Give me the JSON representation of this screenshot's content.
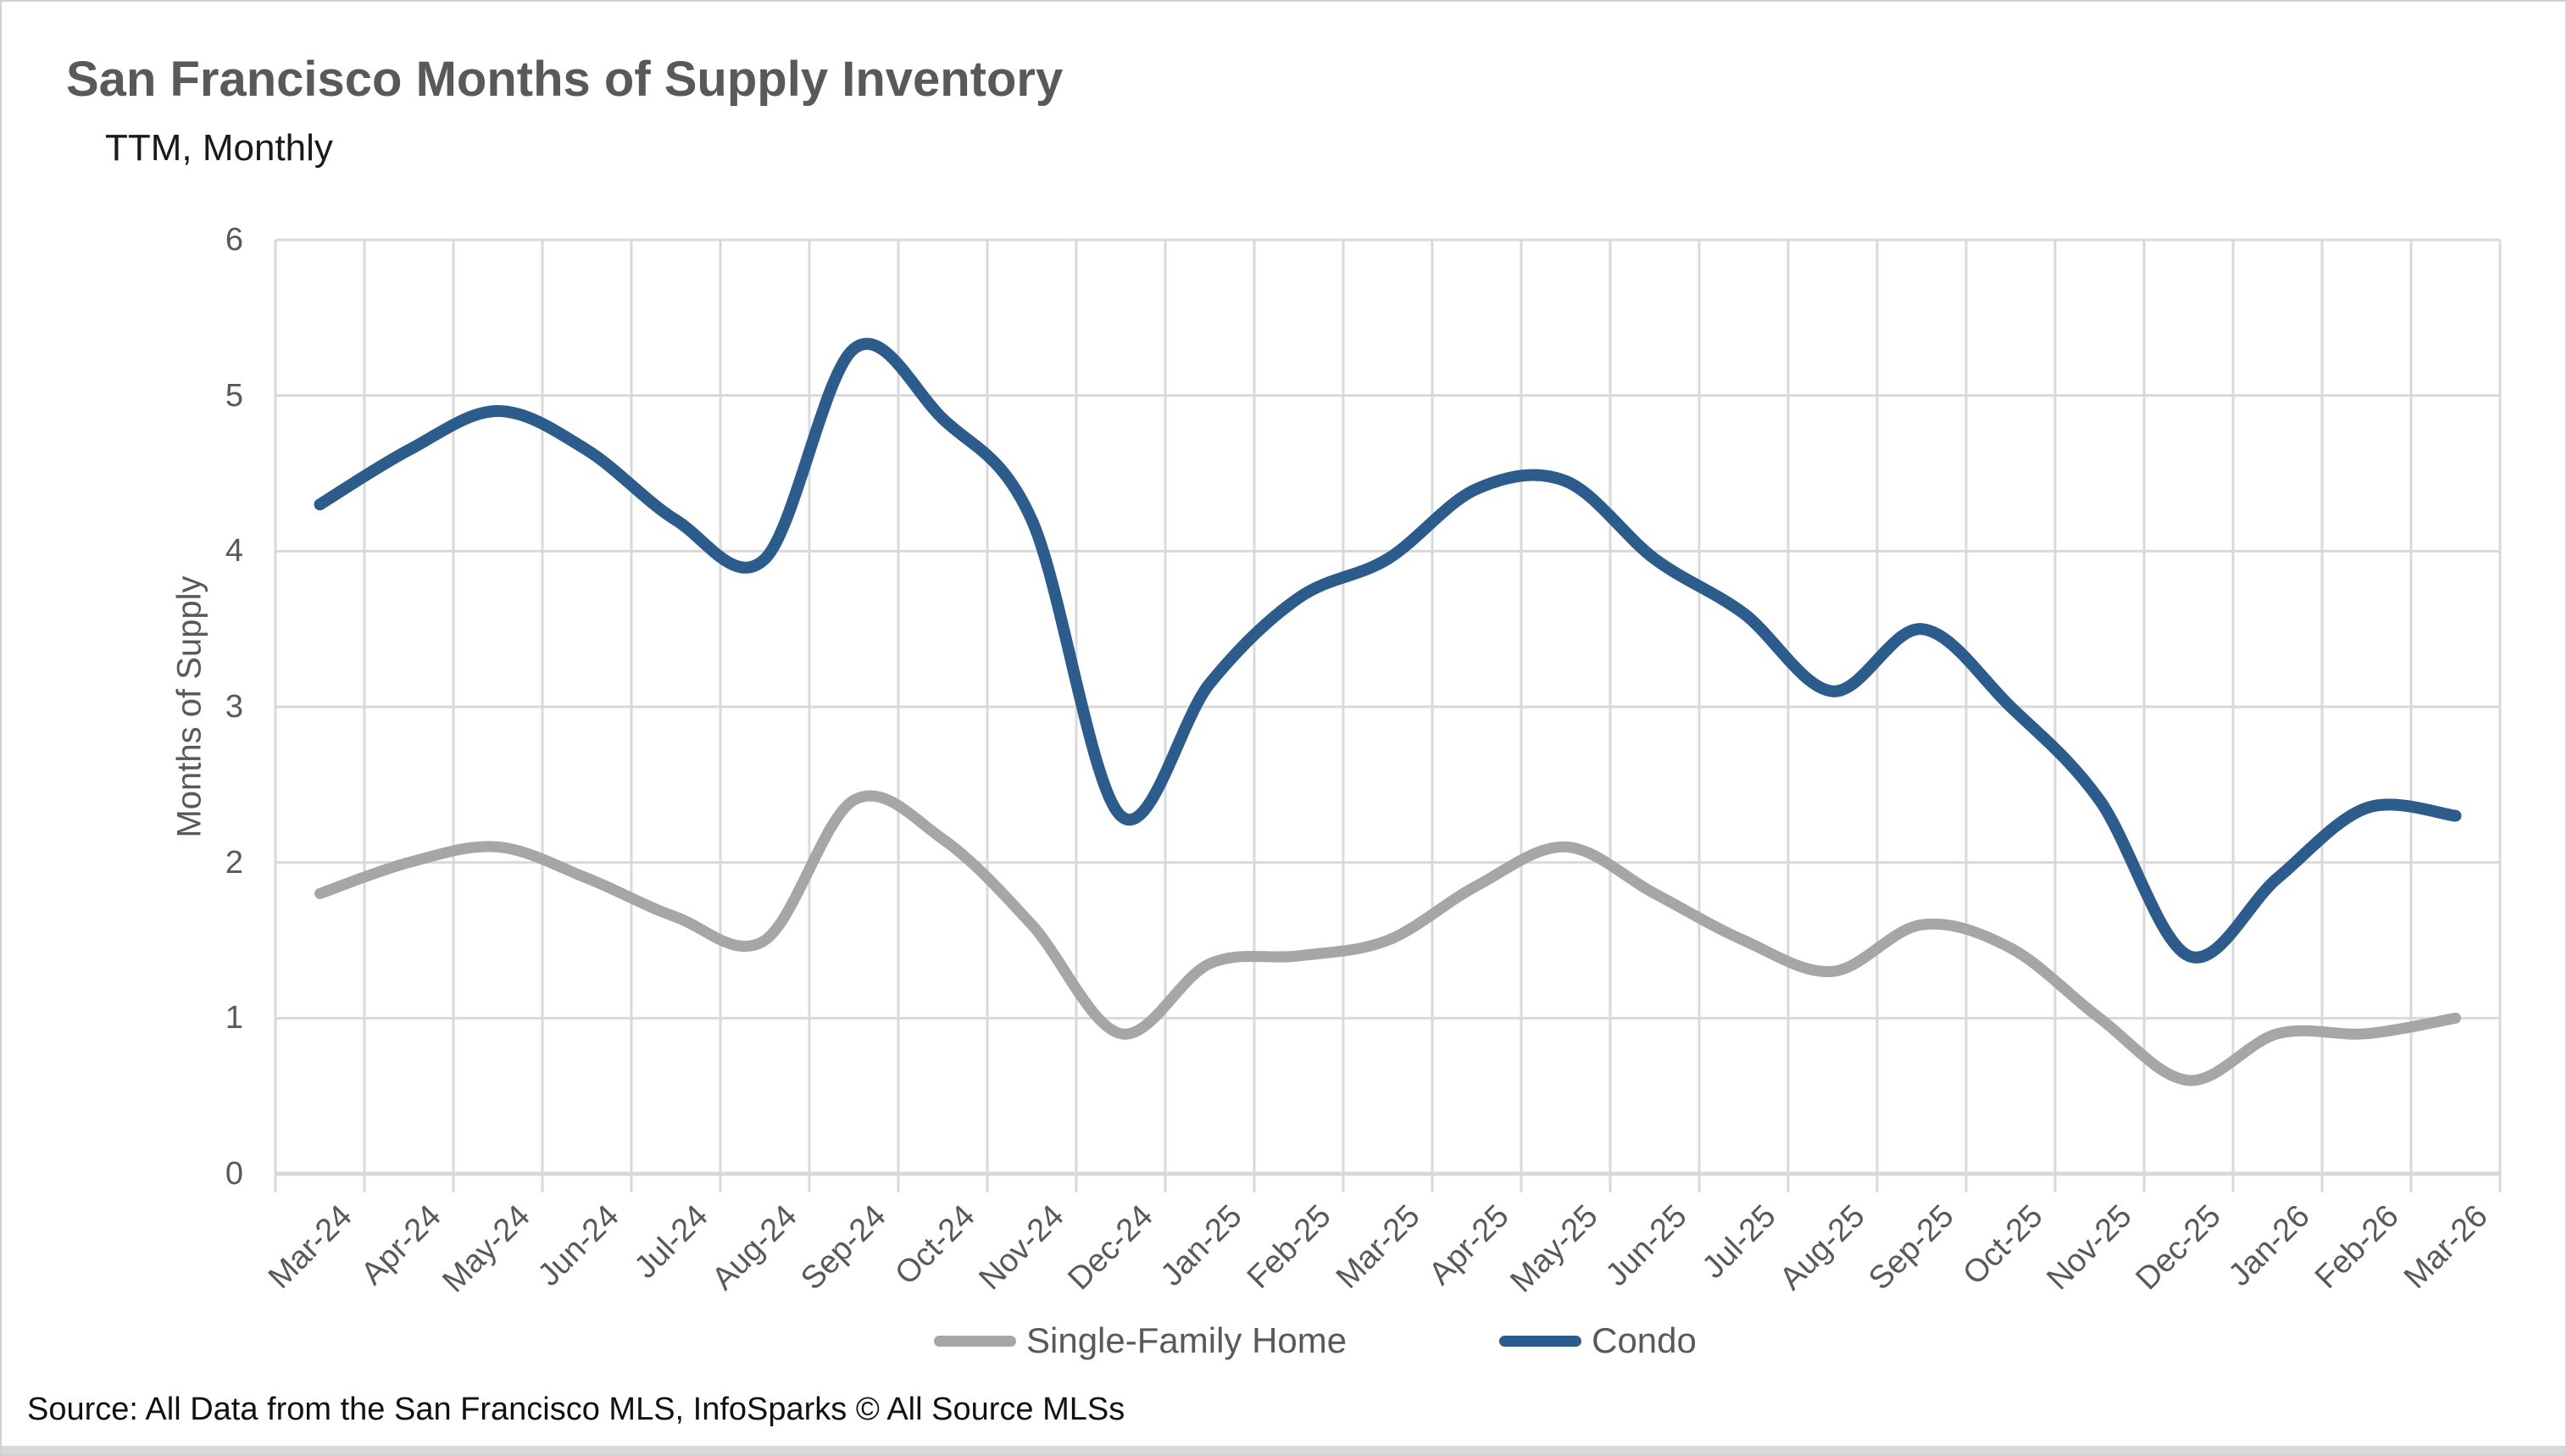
{
  "header": {
    "title": "San Francisco Months of Supply Inventory",
    "subtitle": "TTM, Monthly"
  },
  "footer": {
    "source": "Source: All Data from the San Francisco MLS, InfoSparks © All Source MLSs"
  },
  "colors": {
    "single_family": "#A6A6A6",
    "condo": "#2B5C8C",
    "gridline": "#D9D9D9",
    "axis_line": "#D9D9D9",
    "axis_text": "#595959",
    "title_text": "#595959"
  },
  "chart_data": {
    "type": "line",
    "title": "San Francisco Months of Supply Inventory",
    "subtitle": "TTM, Monthly",
    "xlabel": "",
    "ylabel": "Months of Supply",
    "ylim": [
      0,
      6
    ],
    "yticks": [
      0,
      1,
      2,
      3,
      4,
      5,
      6
    ],
    "grid": true,
    "smoothed": true,
    "legend_position": "bottom",
    "categories": [
      "Mar-24",
      "Apr-24",
      "May-24",
      "Jun-24",
      "Jul-24",
      "Aug-24",
      "Sep-24",
      "Oct-24",
      "Nov-24",
      "Dec-24",
      "Jan-25",
      "Feb-25",
      "Mar-25",
      "Apr-25",
      "May-25",
      "Jun-25",
      "Jul-25",
      "Aug-25",
      "Sep-25",
      "Oct-25",
      "Nov-25",
      "Dec-25",
      "Jan-26",
      "Feb-26",
      "Mar-26"
    ],
    "series": [
      {
        "name": "Single-Family Home",
        "color": "#A6A6A6",
        "values": [
          1.8,
          2.0,
          2.1,
          1.9,
          1.65,
          1.5,
          2.4,
          2.15,
          1.6,
          0.9,
          1.35,
          1.4,
          1.5,
          1.85,
          2.1,
          1.8,
          1.5,
          1.3,
          1.6,
          1.45,
          1.0,
          0.6,
          0.9,
          0.9,
          1.0
        ]
      },
      {
        "name": "Condo",
        "color": "#2B5C8C",
        "values": [
          4.3,
          4.65,
          4.9,
          4.65,
          4.2,
          3.95,
          5.3,
          4.85,
          4.2,
          2.3,
          3.15,
          3.7,
          3.95,
          4.4,
          4.45,
          3.95,
          3.6,
          3.1,
          3.5,
          3.0,
          2.4,
          1.4,
          1.9,
          2.35,
          2.3
        ]
      }
    ]
  }
}
